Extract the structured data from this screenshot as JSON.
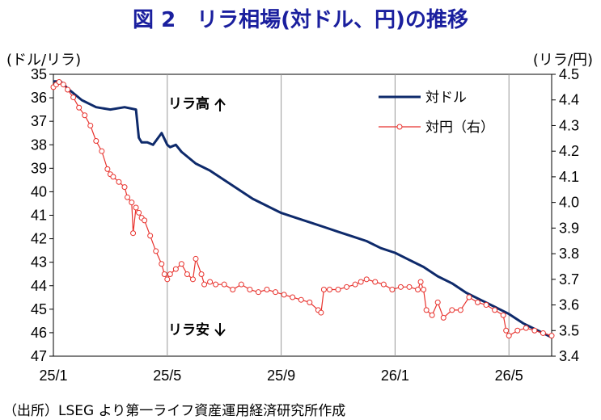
{
  "title": "図 2　リラ相場(対ドル、円)の推移",
  "source": "（出所）LSEG より第一ライフ資産運用経済研究所作成",
  "chart_data": {
    "type": "line",
    "left_axis_label": "(ドル/リラ)",
    "right_axis_label": "(リラ/円)",
    "left_ylim": [
      35,
      47
    ],
    "left_inverted": true,
    "left_ticks": [
      "35",
      "36",
      "37",
      "38",
      "39",
      "40",
      "41",
      "42",
      "43",
      "44",
      "45",
      "46",
      "47"
    ],
    "right_ylim": [
      4.5,
      3.4
    ],
    "right_ticks": [
      "4.5",
      "4.4",
      "4.3",
      "4.2",
      "4.1",
      "4.0",
      "3.9",
      "3.8",
      "3.7",
      "3.6",
      "3.5",
      "3.4"
    ],
    "x_ticks": [
      "25/1",
      "25/5",
      "25/9",
      "26/1",
      "26/5"
    ],
    "annotations": {
      "top": "リラ高",
      "bottom": "リラ安"
    },
    "colors": {
      "usd": "#0e2a6b",
      "jpy": "#e8322d"
    },
    "series": [
      {
        "name": "対ドル",
        "axis": "left",
        "x": [
          0,
          0.25,
          0.5,
          1,
          1.5,
          2,
          2.5,
          2.9,
          3.0,
          3.1,
          3.3,
          3.5,
          3.8,
          4.0,
          4.1,
          4.3,
          4.5,
          5,
          5.5,
          6,
          6.5,
          7,
          7.5,
          8,
          8.5,
          9,
          9.5,
          10,
          10.5,
          11,
          11.5,
          12,
          12.5,
          13,
          13.5,
          14,
          14.5,
          15,
          15.5,
          16,
          16.5,
          17,
          17.5
        ],
        "values": [
          35.3,
          35.3,
          35.6,
          36.1,
          36.4,
          36.5,
          36.4,
          36.5,
          37.7,
          37.9,
          37.9,
          38.0,
          37.5,
          38.0,
          38.1,
          38.0,
          38.3,
          38.8,
          39.1,
          39.5,
          39.9,
          40.3,
          40.6,
          40.9,
          41.1,
          41.3,
          41.5,
          41.7,
          41.9,
          42.1,
          42.4,
          42.6,
          42.9,
          43.2,
          43.6,
          43.9,
          44.3,
          44.6,
          44.9,
          45.2,
          45.6,
          45.9,
          46.2
        ]
      },
      {
        "name": "対円（右）",
        "axis": "right",
        "x": [
          0,
          0.1,
          0.2,
          0.35,
          0.5,
          0.7,
          0.9,
          1.1,
          1.3,
          1.5,
          1.7,
          1.9,
          2.0,
          2.1,
          2.3,
          2.5,
          2.6,
          2.75,
          2.8,
          2.9,
          3.0,
          3.1,
          3.2,
          3.4,
          3.6,
          3.8,
          3.9,
          4.0,
          4.1,
          4.3,
          4.5,
          4.7,
          4.9,
          5.0,
          5.2,
          5.3,
          5.5,
          5.7,
          6.0,
          6.3,
          6.6,
          6.9,
          7.2,
          7.5,
          7.8,
          8.1,
          8.4,
          8.7,
          9.0,
          9.3,
          9.4,
          9.5,
          9.7,
          10.0,
          10.3,
          10.6,
          10.8,
          11.0,
          11.3,
          11.6,
          11.9,
          12.2,
          12.5,
          12.8,
          12.9,
          13.0,
          13.1,
          13.3,
          13.5,
          13.7,
          14.0,
          14.3,
          14.6,
          14.9,
          15.2,
          15.5,
          15.8,
          15.9,
          16.0,
          16.3,
          16.6,
          16.9,
          17.2,
          17.5
        ],
        "values": [
          4.45,
          4.46,
          4.47,
          4.46,
          4.44,
          4.41,
          4.37,
          4.34,
          4.3,
          4.24,
          4.2,
          4.13,
          4.11,
          4.1,
          4.08,
          4.06,
          4.02,
          4.0,
          3.88,
          3.98,
          3.96,
          3.94,
          3.93,
          3.87,
          3.81,
          3.76,
          3.72,
          3.7,
          3.72,
          3.74,
          3.76,
          3.72,
          3.7,
          3.78,
          3.72,
          3.68,
          3.69,
          3.68,
          3.68,
          3.66,
          3.68,
          3.66,
          3.65,
          3.66,
          3.65,
          3.64,
          3.63,
          3.62,
          3.61,
          3.58,
          3.57,
          3.66,
          3.66,
          3.66,
          3.67,
          3.68,
          3.69,
          3.7,
          3.69,
          3.68,
          3.66,
          3.67,
          3.67,
          3.66,
          3.69,
          3.66,
          3.58,
          3.56,
          3.61,
          3.55,
          3.58,
          3.58,
          3.63,
          3.61,
          3.6,
          3.58,
          3.56,
          3.5,
          3.48,
          3.5,
          3.51,
          3.5,
          3.49,
          3.48
        ]
      }
    ]
  }
}
